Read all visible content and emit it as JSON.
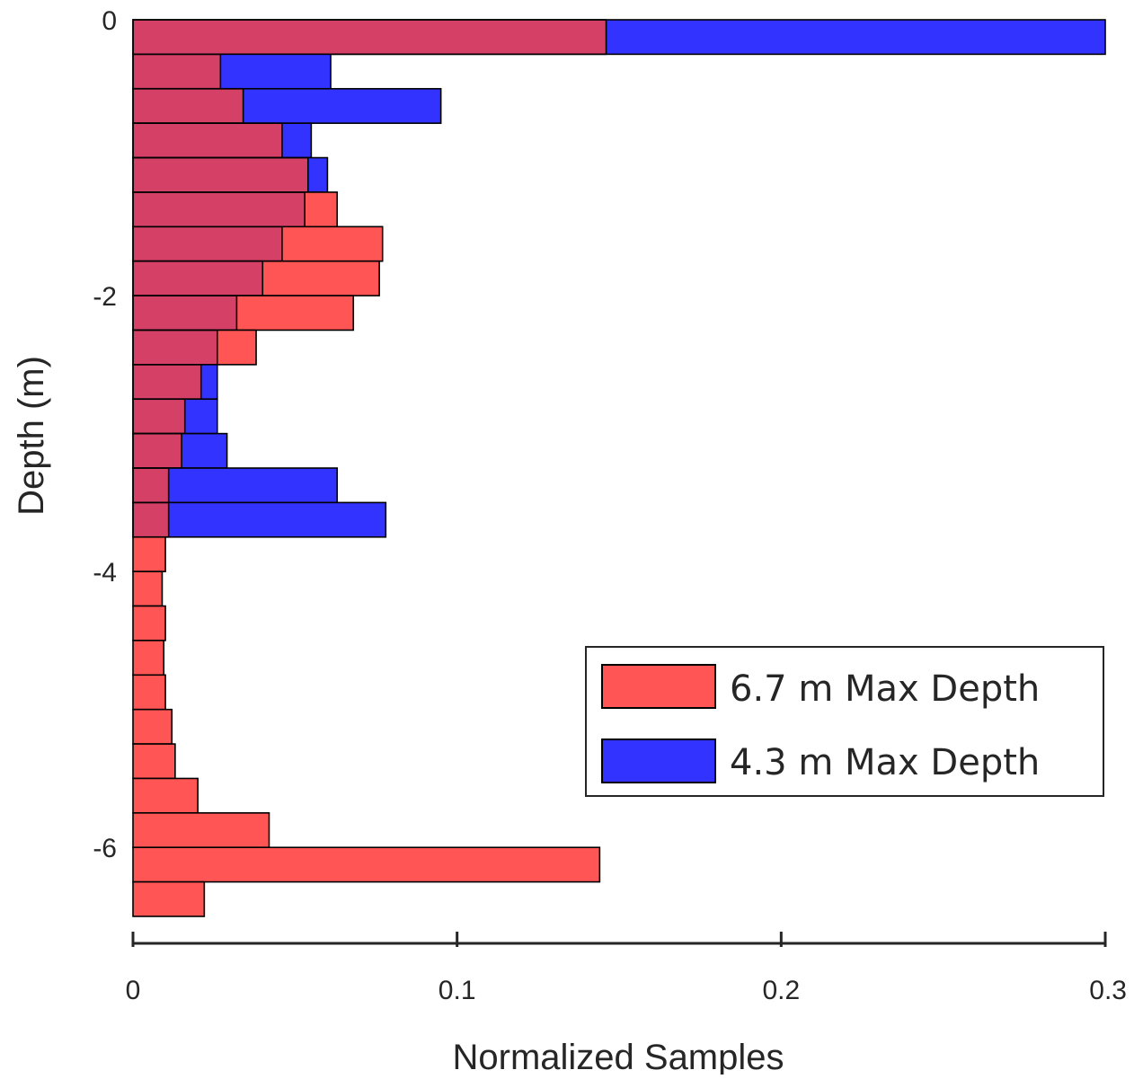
{
  "chart_data": {
    "type": "bar",
    "orientation": "horizontal",
    "xlabel": "Normalized Samples",
    "ylabel": "Depth (m)",
    "xlim": [
      0,
      0.3
    ],
    "ylim": [
      -6.5,
      0
    ],
    "xticks": [
      0,
      0.1,
      0.2,
      0.3
    ],
    "xtick_labels": [
      "0",
      "0.1",
      "0.2",
      "0.3"
    ],
    "yticks": [
      0,
      -2,
      -4,
      -6
    ],
    "ytick_labels": [
      "0",
      "-2",
      "-4",
      "-6"
    ],
    "bin_width": 0.25,
    "bin_centers": [
      -0.125,
      -0.375,
      -0.625,
      -0.875,
      -1.125,
      -1.375,
      -1.625,
      -1.875,
      -2.125,
      -2.375,
      -2.625,
      -2.875,
      -3.125,
      -3.375,
      -3.625,
      -3.875,
      -4.125,
      -4.375,
      -4.625,
      -4.875,
      -5.125,
      -5.375,
      -5.625,
      -5.875,
      -6.125,
      -6.375
    ],
    "series": [
      {
        "name": "6.7 m Max Depth",
        "color": "#ff5555",
        "values": [
          0.146,
          0.027,
          0.034,
          0.046,
          0.054,
          0.063,
          0.077,
          0.076,
          0.068,
          0.038,
          0.021,
          0.016,
          0.015,
          0.011,
          0.011,
          0.01,
          0.009,
          0.01,
          0.0095,
          0.01,
          0.012,
          0.013,
          0.02,
          0.042,
          0.144,
          0.022
        ]
      },
      {
        "name": "4.3 m Max Depth",
        "color": "#3333ff",
        "values": [
          0.3,
          0.061,
          0.095,
          0.055,
          0.06,
          0.053,
          0.046,
          0.04,
          0.032,
          0.026,
          0.026,
          0.026,
          0.029,
          0.063,
          0.078
        ]
      }
    ],
    "overlap_color": "#d44066",
    "legend_position": "lower-right",
    "grid": false
  }
}
